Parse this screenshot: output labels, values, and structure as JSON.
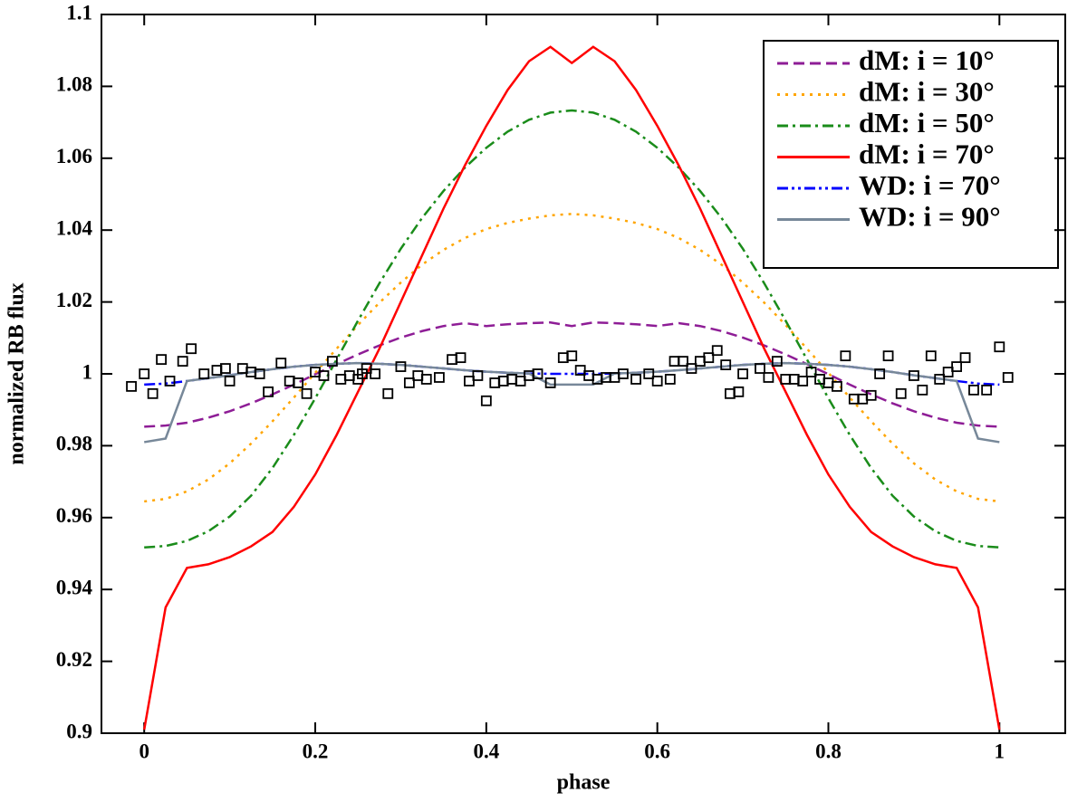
{
  "chart_data": {
    "type": "line",
    "xlabel": "phase",
    "ylabel": "normalized RB flux",
    "xlim": [
      -0.05,
      1.077
    ],
    "ylim": [
      0.9,
      1.1
    ],
    "xticks": [
      0,
      0.2,
      0.4,
      0.6,
      0.8,
      1
    ],
    "yticks": [
      0.9,
      0.92,
      0.94,
      0.96,
      0.98,
      1,
      1.02,
      1.04,
      1.06,
      1.08,
      1.1
    ],
    "legend": "upper right",
    "x": [
      0,
      0.025,
      0.05,
      0.075,
      0.1,
      0.125,
      0.15,
      0.175,
      0.2,
      0.225,
      0.25,
      0.275,
      0.3,
      0.325,
      0.35,
      0.375,
      0.4,
      0.425,
      0.45,
      0.475,
      0.5,
      0.525,
      0.55,
      0.575,
      0.6,
      0.625,
      0.65,
      0.675,
      0.7,
      0.725,
      0.75,
      0.775,
      0.8,
      0.825,
      0.85,
      0.875,
      0.9,
      0.925,
      0.95,
      0.975,
      1
    ],
    "series": [
      {
        "name": "dM: i = 10°",
        "color": "#8e1d96",
        "dash": "dashed",
        "values": [
          0.9853,
          0.9856,
          0.9864,
          0.9878,
          0.9896,
          0.9918,
          0.9943,
          0.997,
          0.9999,
          1.0027,
          1.0054,
          1.0079,
          1.0101,
          1.0119,
          1.0133,
          1.0141,
          1.0133,
          1.0138,
          1.0141,
          1.0143,
          1.0133,
          1.0143,
          1.0141,
          1.0138,
          1.0133,
          1.0141,
          1.0133,
          1.0119,
          1.0101,
          1.0079,
          1.0054,
          1.0027,
          0.9999,
          0.997,
          0.9943,
          0.9918,
          0.9896,
          0.9878,
          0.9864,
          0.9856,
          0.9853
        ]
      },
      {
        "name": "dM: i = 30°",
        "color": "#ffa500",
        "dash": "dotted",
        "values": [
          0.9645,
          0.9652,
          0.9673,
          0.9706,
          0.9751,
          0.9806,
          0.9868,
          0.9934,
          1.0003,
          1.007,
          1.0136,
          1.0198,
          1.0254,
          1.0304,
          1.0345,
          1.0378,
          1.0403,
          1.042,
          1.0432,
          1.0441,
          1.0445,
          1.0441,
          1.0432,
          1.042,
          1.0403,
          1.0378,
          1.0345,
          1.0304,
          1.0254,
          1.0198,
          1.0136,
          1.007,
          1.0003,
          0.9934,
          0.9868,
          0.9806,
          0.9751,
          0.9706,
          0.9673,
          0.9652,
          0.9645
        ]
      },
      {
        "name": "dM: i = 50°",
        "color": "#1a8c1a",
        "dash": "dashdot",
        "values": [
          0.9517,
          0.9521,
          0.9535,
          0.9562,
          0.9603,
          0.9661,
          0.9738,
          0.983,
          0.9932,
          1.004,
          1.0148,
          1.0252,
          1.0348,
          1.0434,
          1.0509,
          1.0574,
          1.0629,
          1.0674,
          1.0707,
          1.0727,
          1.0733,
          1.0727,
          1.0707,
          1.0674,
          1.0629,
          1.0574,
          1.0509,
          1.0434,
          1.0348,
          1.0252,
          1.0148,
          1.004,
          0.9932,
          0.983,
          0.9738,
          0.9661,
          0.9603,
          0.9562,
          0.9535,
          0.9521,
          0.9517
        ]
      },
      {
        "name": "dM: i = 70°",
        "color": "#ff0000",
        "dash": "solid",
        "values": [
          0.901,
          0.935,
          0.946,
          0.947,
          0.949,
          0.952,
          0.956,
          0.963,
          0.972,
          0.983,
          0.995,
          1.007,
          1.02,
          1.033,
          1.046,
          1.058,
          1.069,
          1.079,
          1.087,
          1.091,
          1.0865,
          1.091,
          1.087,
          1.079,
          1.069,
          1.058,
          1.046,
          1.033,
          1.02,
          1.007,
          0.995,
          0.983,
          0.972,
          0.963,
          0.956,
          0.952,
          0.949,
          0.947,
          0.946,
          0.935,
          0.901
        ]
      },
      {
        "name": "WD: i = 70°",
        "color": "#0000ff",
        "dash": "dashdotdot",
        "values": [
          0.997,
          0.9973,
          0.998,
          0.9988,
          0.9996,
          1.0005,
          1.0013,
          1.002,
          1.0025,
          1.0028,
          1.003,
          1.0028,
          1.0025,
          1.002,
          1.0015,
          1.001,
          1.0006,
          1.0003,
          1.0001,
          1.0,
          1.0,
          1.0,
          1.0001,
          1.0003,
          1.0006,
          1.001,
          1.0015,
          1.002,
          1.0025,
          1.0028,
          1.003,
          1.0028,
          1.0025,
          1.002,
          1.0013,
          1.0005,
          0.9996,
          0.9988,
          0.998,
          0.9973,
          0.997
        ]
      },
      {
        "name": "WD: i = 90°",
        "color": "#778899",
        "dash": "solid",
        "values": [
          0.981,
          0.982,
          0.998,
          0.9988,
          0.9996,
          1.0005,
          1.0013,
          1.002,
          1.0025,
          1.0028,
          1.003,
          1.0028,
          1.0025,
          1.002,
          1.0015,
          1.001,
          1.0006,
          1.0003,
          1.0001,
          0.997,
          0.997,
          0.997,
          1.0001,
          1.0003,
          1.0006,
          1.001,
          1.0015,
          1.002,
          1.0025,
          1.0028,
          1.003,
          1.0028,
          1.0025,
          1.002,
          1.0013,
          1.0005,
          0.9996,
          0.9988,
          0.998,
          0.982,
          0.981
        ]
      }
    ],
    "points": {
      "color": "#000000",
      "x": [
        -0.015,
        0.0,
        0.01,
        0.02,
        0.03,
        0.045,
        0.055,
        0.07,
        0.085,
        0.095,
        0.1,
        0.115,
        0.125,
        0.135,
        0.145,
        0.16,
        0.17,
        0.18,
        0.19,
        0.2,
        0.21,
        0.22,
        0.23,
        0.24,
        0.25,
        0.255,
        0.26,
        0.27,
        0.285,
        0.3,
        0.31,
        0.32,
        0.33,
        0.345,
        0.36,
        0.37,
        0.38,
        0.39,
        0.4,
        0.41,
        0.42,
        0.43,
        0.44,
        0.45,
        0.46,
        0.475,
        0.49,
        0.5,
        0.51,
        0.52,
        0.53,
        0.54,
        0.55,
        0.56,
        0.575,
        0.59,
        0.6,
        0.615,
        0.62,
        0.63,
        0.64,
        0.65,
        0.66,
        0.67,
        0.68,
        0.685,
        0.695,
        0.7,
        0.72,
        0.73,
        0.74,
        0.75,
        0.76,
        0.77,
        0.78,
        0.79,
        0.8,
        0.81,
        0.82,
        0.83,
        0.84,
        0.85,
        0.86,
        0.87,
        0.885,
        0.9,
        0.91,
        0.92,
        0.93,
        0.94,
        0.95,
        0.96,
        0.97,
        0.985,
        1.0,
        1.01
      ],
      "values": [
        0.9965,
        1.0,
        0.9945,
        1.004,
        0.998,
        1.0035,
        1.007,
        1.0,
        1.001,
        1.0015,
        0.998,
        1.0015,
        1.0005,
        1.0,
        0.995,
        1.003,
        0.998,
        0.9975,
        0.9945,
        1.0005,
        0.9995,
        1.0035,
        0.9985,
        0.9995,
        0.9985,
        1.0,
        1.0015,
        1.0,
        0.9945,
        1.002,
        0.9975,
        0.9995,
        0.9985,
        0.999,
        1.004,
        1.0045,
        0.998,
        0.9995,
        0.9925,
        0.9975,
        0.998,
        0.9985,
        0.998,
        0.9995,
        1.0,
        0.9975,
        1.0045,
        1.005,
        1.001,
        0.9995,
        0.9985,
        0.999,
        0.999,
        1.0,
        0.9985,
        1.0,
        0.998,
        0.9985,
        1.0035,
        1.0035,
        1.0015,
        1.0035,
        1.0045,
        1.0065,
        1.0025,
        0.9945,
        0.995,
        1.0,
        1.0015,
        0.999,
        1.0035,
        0.9985,
        0.9985,
        0.998,
        1.0005,
        0.9985,
        0.9975,
        0.9965,
        1.005,
        0.993,
        0.993,
        0.994,
        1.0,
        1.005,
        0.9945,
        0.9995,
        0.9955,
        1.005,
        0.9985,
        1.0005,
        1.002,
        1.0045,
        0.9955,
        0.9955,
        1.0075,
        0.999
      ]
    }
  }
}
